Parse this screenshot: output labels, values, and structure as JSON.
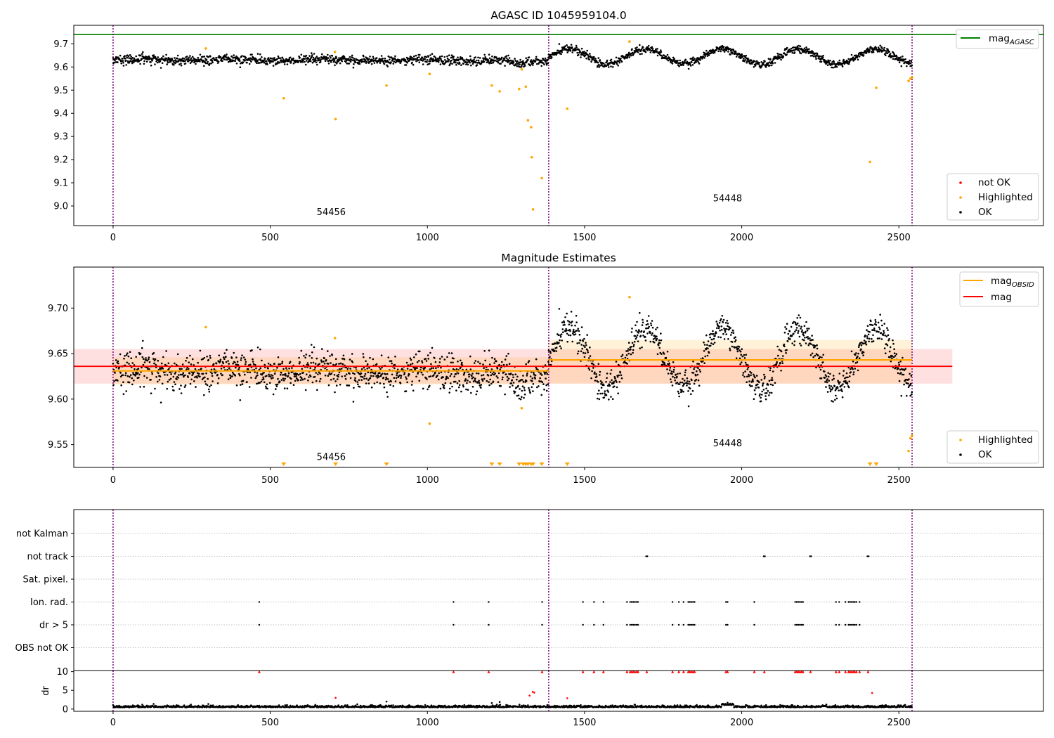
{
  "chart_data": [
    {
      "id": "agasc",
      "type": "scatter",
      "title": "AGASC ID 1045959104.0",
      "xlim": [
        -125,
        2960
      ],
      "ylim": [
        8.915,
        9.78
      ],
      "xticks": [
        0,
        500,
        1000,
        1500,
        2000,
        2500
      ],
      "yticks": [
        9.0,
        9.1,
        9.2,
        9.3,
        9.4,
        9.5,
        9.6,
        9.7
      ],
      "ytick_labels": [
        "9.0",
        "9.1",
        "9.2",
        "9.3",
        "9.4",
        "9.5",
        "9.6",
        "9.7"
      ],
      "grid": false,
      "vlines": [
        0,
        1386,
        2542
      ],
      "hline": {
        "label": "mag_AGASC",
        "value": 9.74,
        "color": "#008000"
      },
      "obsid_labels": [
        {
          "text": "54456",
          "x": 694,
          "y": 8.96
        },
        {
          "text": "54448",
          "x": 1955,
          "y": 9.02
        }
      ],
      "legend_top": [
        {
          "label": "mag",
          "sub": "AGASC",
          "color": "#008000",
          "kind": "line"
        }
      ],
      "legend_bottom": [
        {
          "label": "not OK",
          "color": "#ff0000",
          "kind": "dot"
        },
        {
          "label": "Highlighted",
          "color": "#ffa500",
          "kind": "dot"
        },
        {
          "label": "OK",
          "color": "#000000",
          "kind": "dot"
        }
      ],
      "series": [
        {
          "name": "Highlighted",
          "color": "#ffa500",
          "x": [
            295,
            706,
            543,
            708,
            870,
            1007,
            1205,
            1230,
            1292,
            1300,
            1313,
            1320,
            1330,
            1332,
            1336,
            1364,
            1445,
            1643,
            2408,
            2428,
            2531,
            2537,
            2542
          ],
          "y": [
            9.68,
            9.665,
            9.465,
            9.375,
            9.52,
            9.57,
            9.52,
            9.495,
            9.505,
            9.59,
            9.515,
            9.37,
            9.34,
            9.21,
            8.985,
            9.12,
            9.42,
            9.71,
            9.19,
            9.51,
            9.54,
            9.55,
            9.555
          ]
        }
      ],
      "ok_segments": [
        {
          "x0": 0,
          "x1": 1386,
          "base": 9.63,
          "amp": 0.004,
          "period": 300,
          "noise": 0.01,
          "dip_center": 1290,
          "dip": 0.018
        },
        {
          "x0": 1386,
          "x1": 2542,
          "base": 9.645,
          "amp": 0.032,
          "period": 245,
          "noise": 0.008,
          "dip_center": -1,
          "dip": 0
        }
      ]
    },
    {
      "id": "estimates",
      "type": "scatter",
      "title": "Magnitude Estimates",
      "xlim": [
        -125,
        2960
      ],
      "ylim": [
        9.525,
        9.745
      ],
      "xticks": [
        0,
        500,
        1000,
        1500,
        2000,
        2500
      ],
      "yticks": [
        9.55,
        9.6,
        9.65,
        9.7
      ],
      "ytick_labels": [
        "9.55",
        "9.60",
        "9.65",
        "9.70"
      ],
      "grid": false,
      "vlines": [
        0,
        1386,
        2542
      ],
      "mag_line": {
        "label": "mag",
        "value": 9.636,
        "band": [
          9.617,
          9.655
        ],
        "x_range": [
          -125,
          2670
        ],
        "color": "#ff0000"
      },
      "obsid_mags": [
        {
          "x0": 0,
          "x1": 1386,
          "value": 9.631,
          "band": [
            9.616,
            9.646
          ]
        },
        {
          "x0": 1386,
          "x1": 2542,
          "value": 9.643,
          "band": [
            9.617,
            9.665
          ]
        }
      ],
      "obsid_labels": [
        {
          "text": "54456",
          "x": 694,
          "y": 9.533
        },
        {
          "text": "54448",
          "x": 1955,
          "y": 9.548
        }
      ],
      "legend_top": [
        {
          "label": "mag",
          "sub": "OBSID",
          "color": "#ffa500",
          "kind": "line"
        },
        {
          "label": "mag",
          "sub": "",
          "color": "#ff0000",
          "kind": "line"
        }
      ],
      "legend_bottom": [
        {
          "label": "Highlighted",
          "color": "#ffa500",
          "kind": "dot"
        },
        {
          "label": "OK",
          "color": "#000000",
          "kind": "dot"
        }
      ],
      "series": [
        {
          "name": "Highlighted",
          "color": "#ffa500",
          "x": [
            295,
            706,
            1007,
            1300,
            1643,
            2531,
            2537,
            2542
          ],
          "y": [
            9.679,
            9.667,
            9.573,
            9.59,
            9.712,
            9.543,
            9.557,
            9.56
          ]
        }
      ],
      "below_axis_markers": [
        543,
        708,
        870,
        1205,
        1230,
        1292,
        1305,
        1313,
        1320,
        1330,
        1336,
        1364,
        1445,
        2408,
        2428
      ],
      "ok_segments": [
        {
          "x0": 0,
          "x1": 1386,
          "base": 9.63,
          "amp": 0.004,
          "period": 300,
          "noise": 0.01,
          "dip_center": 1290,
          "dip": 0.018
        },
        {
          "x0": 1386,
          "x1": 2542,
          "base": 9.645,
          "amp": 0.032,
          "period": 245,
          "noise": 0.008,
          "dip_center": -1,
          "dip": 0
        }
      ]
    },
    {
      "id": "flags",
      "type": "scatter",
      "title": "",
      "xlim": [
        -125,
        2960
      ],
      "categories": [
        "not Kalman",
        "not track",
        "Sat. pixel.",
        "Ion. rad.",
        "dr > 5",
        "OBS not OK"
      ],
      "grid": true,
      "vlines": [
        0,
        1386,
        2542
      ],
      "flags": {
        "not track": [
          1696,
          1700,
          2070,
          2074,
          2217,
          2221,
          2400,
          2404
        ],
        "Ion. rad.": [
          465,
          1083,
          1195,
          1365,
          1495,
          1530,
          1560,
          1635,
          1645,
          1650,
          1655,
          1660,
          1665,
          1670,
          1780,
          1800,
          1815,
          1830,
          1835,
          1840,
          1845,
          1850,
          1950,
          1955,
          2040,
          2170,
          2175,
          2180,
          2185,
          2190,
          2195,
          2300,
          2310,
          2330,
          2340,
          2345,
          2350,
          2355,
          2360,
          2365,
          2375
        ],
        "dr > 5": [
          465,
          1083,
          1195,
          1365,
          1495,
          1530,
          1560,
          1635,
          1645,
          1650,
          1655,
          1660,
          1665,
          1670,
          1780,
          1800,
          1815,
          1830,
          1835,
          1840,
          1845,
          1850,
          1950,
          1955,
          2040,
          2170,
          2175,
          2180,
          2185,
          2190,
          2195,
          2300,
          2310,
          2330,
          2340,
          2345,
          2350,
          2355,
          2360,
          2365,
          2375
        ]
      }
    },
    {
      "id": "dr",
      "type": "scatter",
      "title": "",
      "ylabel": "dr",
      "xlim": [
        -125,
        2960
      ],
      "ylim": [
        -0.6,
        10.3
      ],
      "xticks": [
        0,
        500,
        1000,
        1500,
        2000,
        2500
      ],
      "yticks": [
        0,
        5,
        10
      ],
      "ytick_labels": [
        "0",
        "5",
        "10"
      ],
      "vlines": [
        0,
        1386,
        2542
      ],
      "capped_value": 10,
      "capped_x": [
        465,
        1083,
        1195,
        1365,
        1495,
        1530,
        1560,
        1635,
        1645,
        1650,
        1655,
        1660,
        1665,
        1670,
        1698,
        1780,
        1800,
        1815,
        1830,
        1835,
        1840,
        1845,
        1850,
        1950,
        1955,
        2040,
        2072,
        2170,
        2175,
        2180,
        2185,
        2190,
        2195,
        2219,
        2300,
        2310,
        2330,
        2340,
        2345,
        2350,
        2355,
        2360,
        2365,
        2375,
        2402
      ],
      "outliers": [
        {
          "x": 708,
          "y": 3.0,
          "color": "#ff0000"
        },
        {
          "x": 1325,
          "y": 3.6,
          "color": "#ff0000"
        },
        {
          "x": 1335,
          "y": 4.6,
          "color": "#ff0000"
        },
        {
          "x": 1340,
          "y": 4.4,
          "color": "#ff0000"
        },
        {
          "x": 1445,
          "y": 2.9,
          "color": "#ff0000"
        },
        {
          "x": 2415,
          "y": 4.3,
          "color": "#ff0000"
        },
        {
          "x": 870,
          "y": 2.0,
          "color": "#000000"
        },
        {
          "x": 1205,
          "y": 1.6,
          "color": "#000000"
        },
        {
          "x": 1230,
          "y": 1.9,
          "color": "#000000"
        },
        {
          "x": 1955,
          "y": 1.7,
          "color": "#000000"
        }
      ]
    }
  ]
}
